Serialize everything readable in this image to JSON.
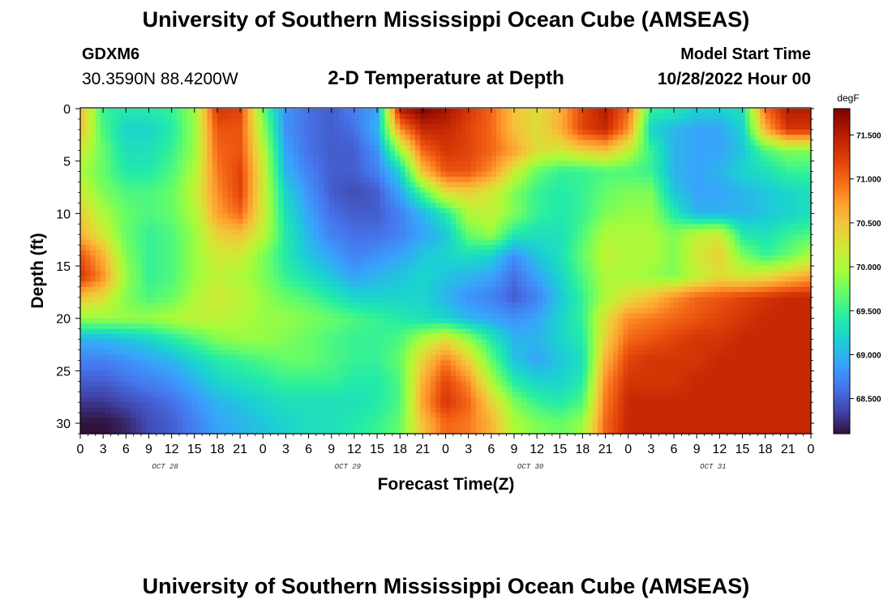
{
  "header": {
    "title": "University of Southern Mississippi Ocean Cube (AMSEAS)",
    "station_id": "GDXM6",
    "coordinates": "30.3590N  88.4200W",
    "subtitle": "2-D Temperature at Depth",
    "model_start_label": "Model Start Time",
    "model_start_value": "10/28/2022 Hour 00"
  },
  "footer": {
    "title": "University of Southern Mississippi Ocean Cube (AMSEAS)"
  },
  "chart_data": {
    "type": "heatmap",
    "title": "2-D Temperature at Depth",
    "xlabel": "Forecast Time(Z)",
    "ylabel": "Depth (ft)",
    "colorbar_unit": "degF",
    "colorbar_ticks": [
      "71.500",
      "71.000",
      "70.500",
      "70.000",
      "69.500",
      "69.000",
      "68.500"
    ],
    "colorbar_range": [
      68.1,
      71.8
    ],
    "colorbar_colors": [
      "#30123b",
      "#4145ab",
      "#4675ed",
      "#39a2fc",
      "#1bcfd4",
      "#24eca6",
      "#61fc6c",
      "#a4fc3b",
      "#d1e834",
      "#f3c63a",
      "#fe9b2d",
      "#f36315",
      "#d93806",
      "#b11901",
      "#7a0402"
    ],
    "x_tick_labels": [
      "0",
      "3",
      "6",
      "9",
      "12",
      "15",
      "18",
      "21",
      "0",
      "3",
      "6",
      "9",
      "12",
      "15",
      "18",
      "21",
      "0",
      "3",
      "6",
      "9",
      "12",
      "15",
      "18",
      "21",
      "0",
      "3",
      "6",
      "9",
      "12",
      "15",
      "18",
      "21",
      "0"
    ],
    "x_range_hours": [
      0,
      96
    ],
    "day_labels": [
      "OCT 28",
      "OCT 29",
      "OCT 30",
      "OCT 31"
    ],
    "y_ticks": [
      0,
      5,
      10,
      15,
      20,
      25,
      30
    ],
    "y_range": [
      0,
      31
    ],
    "time_hours": [
      0,
      3,
      6,
      9,
      12,
      15,
      18,
      21,
      24,
      27,
      30,
      33,
      36,
      39,
      42,
      45,
      48,
      51,
      54,
      57,
      60,
      63,
      66,
      69,
      72,
      75,
      78,
      81,
      84,
      87,
      90,
      93,
      96
    ],
    "depths_ft": [
      0,
      2,
      4,
      6,
      8,
      10,
      12,
      14,
      16,
      18,
      20,
      22,
      24,
      26,
      28,
      30
    ],
    "temperature_degF": [
      [
        70.6,
        69.5,
        69.4,
        69.4,
        69.5,
        69.9,
        71.3,
        71.2,
        69.7,
        68.8,
        68.6,
        68.5,
        68.7,
        68.9,
        71.5,
        71.8,
        71.6,
        71.3,
        71.0,
        70.5,
        70.3,
        70.6,
        71.2,
        71.5,
        71.0,
        69.5,
        69.4,
        69.2,
        69.2,
        69.3,
        71.0,
        71.5,
        71.5
      ],
      [
        70.5,
        69.6,
        69.2,
        69.2,
        69.4,
        69.9,
        71.1,
        71.1,
        69.9,
        68.8,
        68.6,
        68.5,
        68.6,
        69.0,
        70.8,
        71.4,
        71.4,
        71.2,
        71.0,
        70.5,
        70.3,
        70.6,
        71.2,
        71.4,
        70.8,
        69.2,
        69.0,
        68.9,
        68.9,
        69.2,
        70.6,
        71.3,
        71.3
      ],
      [
        70.2,
        69.7,
        69.3,
        69.3,
        69.5,
        69.9,
        71.0,
        71.1,
        70.1,
        68.9,
        68.6,
        68.5,
        68.5,
        68.8,
        69.9,
        71.0,
        71.3,
        71.2,
        71.0,
        70.7,
        70.3,
        70.2,
        70.4,
        70.5,
        70.1,
        69.5,
        69.0,
        68.9,
        68.9,
        69.1,
        69.6,
        69.8,
        69.8
      ],
      [
        70.0,
        69.7,
        69.4,
        69.4,
        69.6,
        70.0,
        70.9,
        71.2,
        70.2,
        69.0,
        68.7,
        68.5,
        68.5,
        68.7,
        69.2,
        70.5,
        71.1,
        71.1,
        70.8,
        70.2,
        69.7,
        69.5,
        69.5,
        69.6,
        69.6,
        69.5,
        69.0,
        68.9,
        69.0,
        69.2,
        69.3,
        69.5,
        69.5
      ],
      [
        70.2,
        69.8,
        69.6,
        69.6,
        69.7,
        70.1,
        70.8,
        71.2,
        70.2,
        69.2,
        68.8,
        68.5,
        68.4,
        68.5,
        68.9,
        69.6,
        70.3,
        70.4,
        70.2,
        69.8,
        69.5,
        69.4,
        69.5,
        69.7,
        69.8,
        69.8,
        69.1,
        68.9,
        68.9,
        69.0,
        69.1,
        69.2,
        69.3
      ],
      [
        70.4,
        70.0,
        69.7,
        69.6,
        69.7,
        70.0,
        70.7,
        71.0,
        70.2,
        69.3,
        68.9,
        68.6,
        68.5,
        68.5,
        68.7,
        69.0,
        69.4,
        70.0,
        70.1,
        69.8,
        69.5,
        69.4,
        69.5,
        69.8,
        69.9,
        69.9,
        69.4,
        69.0,
        69.0,
        69.0,
        69.1,
        69.2,
        69.3
      ],
      [
        70.6,
        70.2,
        69.7,
        69.5,
        69.6,
        69.9,
        70.4,
        70.5,
        70.1,
        69.4,
        69.0,
        68.7,
        68.6,
        68.6,
        68.7,
        68.9,
        69.1,
        69.7,
        69.9,
        69.4,
        69.3,
        69.3,
        69.6,
        70.0,
        70.0,
        70.0,
        69.8,
        70.1,
        70.2,
        69.4,
        69.3,
        69.5,
        69.6
      ],
      [
        71.1,
        70.6,
        69.8,
        69.5,
        69.6,
        69.9,
        70.2,
        70.2,
        69.8,
        69.4,
        69.1,
        68.9,
        68.7,
        68.8,
        68.9,
        69.1,
        69.2,
        69.3,
        69.2,
        68.8,
        69.1,
        69.3,
        69.7,
        70.1,
        70.0,
        70.0,
        69.8,
        70.2,
        70.4,
        69.8,
        69.5,
        69.7,
        70.0
      ],
      [
        71.3,
        70.8,
        69.9,
        69.5,
        69.6,
        69.9,
        70.1,
        70.0,
        69.8,
        69.5,
        69.3,
        69.1,
        68.9,
        69.0,
        69.1,
        69.2,
        69.1,
        69.0,
        68.9,
        68.6,
        68.9,
        69.2,
        69.6,
        70.0,
        70.0,
        69.9,
        69.8,
        70.1,
        70.3,
        70.2,
        70.3,
        70.5,
        70.7
      ],
      [
        70.5,
        70.3,
        69.8,
        69.6,
        69.7,
        70.0,
        70.2,
        70.1,
        69.9,
        69.7,
        69.6,
        69.4,
        69.2,
        69.2,
        69.2,
        69.2,
        69.0,
        68.8,
        68.7,
        68.5,
        68.7,
        69.1,
        69.5,
        70.0,
        70.3,
        70.5,
        70.8,
        71.0,
        71.1,
        71.2,
        71.3,
        71.4,
        71.4
      ],
      [
        69.9,
        69.9,
        69.9,
        69.9,
        70.0,
        70.1,
        70.1,
        70.0,
        69.9,
        69.9,
        69.8,
        69.7,
        69.6,
        69.5,
        69.4,
        69.3,
        69.2,
        69.0,
        68.9,
        68.8,
        68.9,
        69.2,
        69.5,
        70.3,
        70.8,
        70.9,
        71.0,
        71.1,
        71.2,
        71.3,
        71.4,
        71.4,
        71.4
      ],
      [
        69.0,
        69.0,
        69.1,
        69.2,
        69.4,
        69.6,
        69.8,
        69.9,
        69.9,
        69.8,
        69.7,
        69.6,
        69.5,
        69.5,
        69.6,
        70.0,
        70.3,
        69.9,
        69.4,
        69.0,
        69.0,
        69.2,
        69.4,
        70.4,
        71.0,
        71.1,
        71.2,
        71.3,
        71.3,
        71.4,
        71.4,
        71.4,
        71.4
      ],
      [
        68.7,
        68.7,
        68.8,
        68.9,
        69.0,
        69.2,
        69.4,
        69.5,
        69.6,
        69.7,
        69.7,
        69.6,
        69.5,
        69.5,
        69.7,
        70.4,
        70.9,
        70.4,
        69.7,
        69.1,
        68.9,
        69.1,
        69.3,
        70.6,
        71.2,
        71.3,
        71.3,
        71.3,
        71.4,
        71.4,
        71.4,
        71.4,
        71.4
      ],
      [
        68.5,
        68.5,
        68.6,
        68.7,
        68.8,
        69.0,
        69.2,
        69.3,
        69.4,
        69.5,
        69.5,
        69.5,
        69.4,
        69.4,
        69.6,
        70.6,
        71.2,
        70.8,
        70.0,
        69.4,
        69.2,
        69.2,
        69.4,
        70.8,
        71.3,
        71.3,
        71.3,
        71.4,
        71.4,
        71.4,
        71.4,
        71.4,
        71.4
      ],
      [
        68.3,
        68.3,
        68.4,
        68.5,
        68.6,
        68.8,
        69.0,
        69.1,
        69.2,
        69.3,
        69.3,
        69.3,
        69.3,
        69.4,
        69.6,
        70.7,
        71.3,
        71.0,
        70.4,
        69.8,
        69.5,
        69.4,
        69.6,
        70.9,
        71.4,
        71.4,
        71.4,
        71.4,
        71.4,
        71.4,
        71.4,
        71.4,
        71.4
      ],
      [
        68.1,
        68.1,
        68.2,
        68.4,
        68.5,
        68.7,
        68.9,
        69.0,
        69.1,
        69.2,
        69.3,
        69.3,
        69.4,
        69.5,
        69.7,
        70.5,
        71.0,
        70.9,
        70.6,
        70.0,
        69.8,
        69.7,
        69.9,
        71.0,
        71.4,
        71.4,
        71.4,
        71.4,
        71.4,
        71.4,
        71.4,
        71.4,
        71.4
      ]
    ]
  }
}
